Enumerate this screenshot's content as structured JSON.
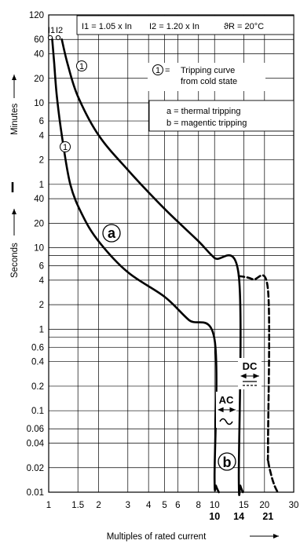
{
  "chart_data": {
    "type": "line",
    "xlabel": "Multiples of rated current",
    "x_scale": "log",
    "xlim": [
      1,
      30
    ],
    "x_ticks": [
      {
        "value": 1,
        "label": "1"
      },
      {
        "value": 1.5,
        "label": "1.5"
      },
      {
        "value": 2,
        "label": "2"
      },
      {
        "value": 3,
        "label": "3"
      },
      {
        "value": 4,
        "label": "4"
      },
      {
        "value": 5,
        "label": "5"
      },
      {
        "value": 6,
        "label": "6"
      },
      {
        "value": 8,
        "label": "8"
      },
      {
        "value": 10,
        "label": "10"
      },
      {
        "value": 15,
        "label": "15"
      },
      {
        "value": 20,
        "label": "20"
      },
      {
        "value": 30,
        "label": "30"
      }
    ],
    "x_ticks_bold": [
      {
        "value": 10,
        "label": "10"
      },
      {
        "value": 14,
        "label": "14"
      },
      {
        "value": 21,
        "label": "21"
      }
    ],
    "y_scale": "log",
    "ylim_seconds": [
      0.01,
      7200
    ],
    "ylabel_minutes": "Minutes",
    "ylabel_seconds": "Seconds",
    "y_ticks_minutes": [
      {
        "value": 120,
        "label": "120"
      },
      {
        "value": 60,
        "label": "60"
      },
      {
        "value": 40,
        "label": "40"
      },
      {
        "value": 20,
        "label": "20"
      },
      {
        "value": 10,
        "label": "10"
      },
      {
        "value": 6,
        "label": "6"
      },
      {
        "value": 4,
        "label": "4"
      },
      {
        "value": 2,
        "label": "2"
      },
      {
        "value": 1,
        "label": "1"
      }
    ],
    "y_ticks_seconds": [
      {
        "value": 40,
        "label": "40"
      },
      {
        "value": 20,
        "label": "20"
      },
      {
        "value": 10,
        "label": "10"
      },
      {
        "value": 6,
        "label": "6"
      },
      {
        "value": 4,
        "label": "4"
      },
      {
        "value": 2,
        "label": "2"
      },
      {
        "value": 1,
        "label": "1"
      },
      {
        "value": 0.6,
        "label": "0.6"
      },
      {
        "value": 0.4,
        "label": "0.4"
      },
      {
        "value": 0.2,
        "label": "0.2"
      },
      {
        "value": 0.1,
        "label": "0.1"
      },
      {
        "value": 0.06,
        "label": "0.06"
      },
      {
        "value": 0.04,
        "label": "0.04"
      },
      {
        "value": 0.02,
        "label": "0.02"
      },
      {
        "value": 0.01,
        "label": "0.01"
      }
    ],
    "y_gridlines_seconds": [
      7200,
      3600,
      2400,
      1200,
      600,
      360,
      240,
      120,
      60,
      40,
      20,
      10,
      8,
      6,
      4,
      2,
      1,
      0.8,
      0.6,
      0.4,
      0.2,
      0.1,
      0.06,
      0.04,
      0.02,
      0.01
    ],
    "header": {
      "i1": "I1 = 1.05 x In",
      "i2": "I2 = 1.20 x In",
      "theta": "ϑR = 20°C"
    },
    "legend_circle": "1",
    "legend_text_1": "Tripping curve",
    "legend_text_2": "from cold state",
    "legend_a": "a = thermal tripping",
    "legend_b": "b = magentic tripping",
    "label_a": "a",
    "label_b": "b",
    "label_ac": "AC",
    "label_dc": "DC",
    "label_I": "I",
    "marker_i1": "I1",
    "marker_i2": "I2",
    "series": [
      {
        "style": "solid",
        "points": [
          [
            1.05,
            3600
          ],
          [
            1.08,
            1800
          ],
          [
            1.12,
            720
          ],
          [
            1.2,
            240
          ],
          [
            1.35,
            60
          ],
          [
            1.6,
            25
          ],
          [
            2,
            12
          ],
          [
            3,
            5
          ],
          [
            5,
            2.5
          ],
          [
            7,
            1.3
          ],
          [
            10,
            0.75
          ],
          [
            10,
            0.015
          ],
          [
            10.2,
            0.012
          ],
          [
            10.6,
            0.01
          ]
        ]
      },
      {
        "style": "solid",
        "points": [
          [
            1.2,
            3600
          ],
          [
            1.3,
            1800
          ],
          [
            1.5,
            720
          ],
          [
            2,
            240
          ],
          [
            3,
            90
          ],
          [
            5,
            30
          ],
          [
            8,
            12
          ],
          [
            10,
            7.5
          ],
          [
            14,
            4.5
          ],
          [
            14,
            0.015
          ],
          [
            14.3,
            0.012
          ],
          [
            14.8,
            0.01
          ]
        ]
      },
      {
        "style": "dashed",
        "points": [
          [
            14,
            4.5
          ],
          [
            17,
            4.1
          ],
          [
            21,
            3
          ],
          [
            21,
            0.04
          ],
          [
            21,
            0.025
          ],
          [
            22,
            0.016
          ],
          [
            23,
            0.012
          ],
          [
            24,
            0.01
          ]
        ]
      }
    ]
  }
}
